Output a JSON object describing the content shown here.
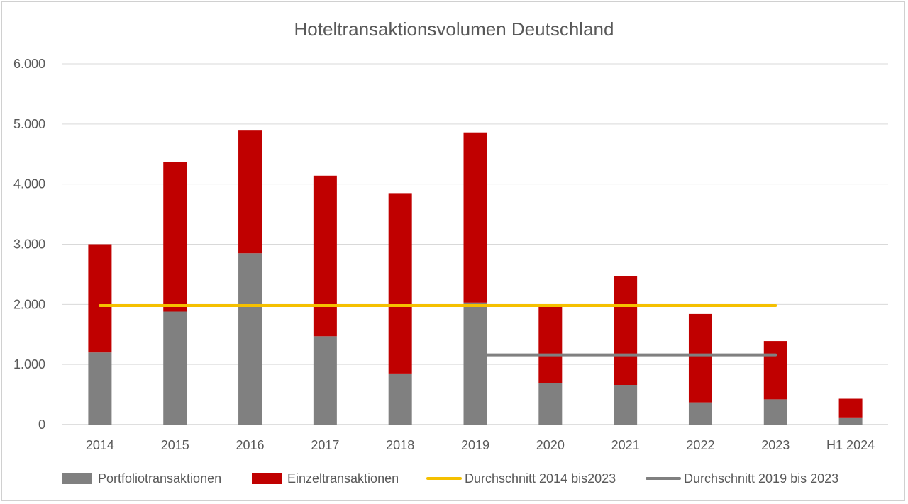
{
  "chart_data": {
    "type": "bar",
    "stacked": true,
    "title": "Hoteltransaktionsvolumen Deutschland",
    "xlabel": "",
    "ylabel": "",
    "ylim": [
      0,
      6000
    ],
    "yticks": [
      0,
      1000,
      2000,
      3000,
      4000,
      5000,
      6000
    ],
    "ytick_labels": [
      "0",
      "1.000",
      "2.000",
      "3.000",
      "4.000",
      "5.000",
      "6.000"
    ],
    "grid": true,
    "legend_position": "bottom",
    "categories": [
      "2014",
      "2015",
      "2016",
      "2017",
      "2018",
      "2019",
      "2020",
      "2021",
      "2022",
      "2023",
      "H1 2024"
    ],
    "series": [
      {
        "name": "Portfoliotransaktionen",
        "type": "bar",
        "color": "#808080",
        "values": [
          1200,
          1880,
          2850,
          1470,
          850,
          2030,
          690,
          660,
          370,
          420,
          120
        ]
      },
      {
        "name": "Einzeltransaktionen",
        "type": "bar",
        "color": "#c00000",
        "values": [
          1800,
          2490,
          2040,
          2670,
          3000,
          2830,
          1270,
          1810,
          1470,
          970,
          310
        ]
      },
      {
        "name": "Durchschnitt 2014 bis2023",
        "type": "line",
        "color": "#f5c000",
        "x_from": "2014",
        "x_to": "2023",
        "value": 1980
      },
      {
        "name": "Durchschnitt 2019 bis 2023",
        "type": "line",
        "color": "#808080",
        "x_from": "2019",
        "x_to": "2023",
        "value": 1160
      }
    ]
  }
}
